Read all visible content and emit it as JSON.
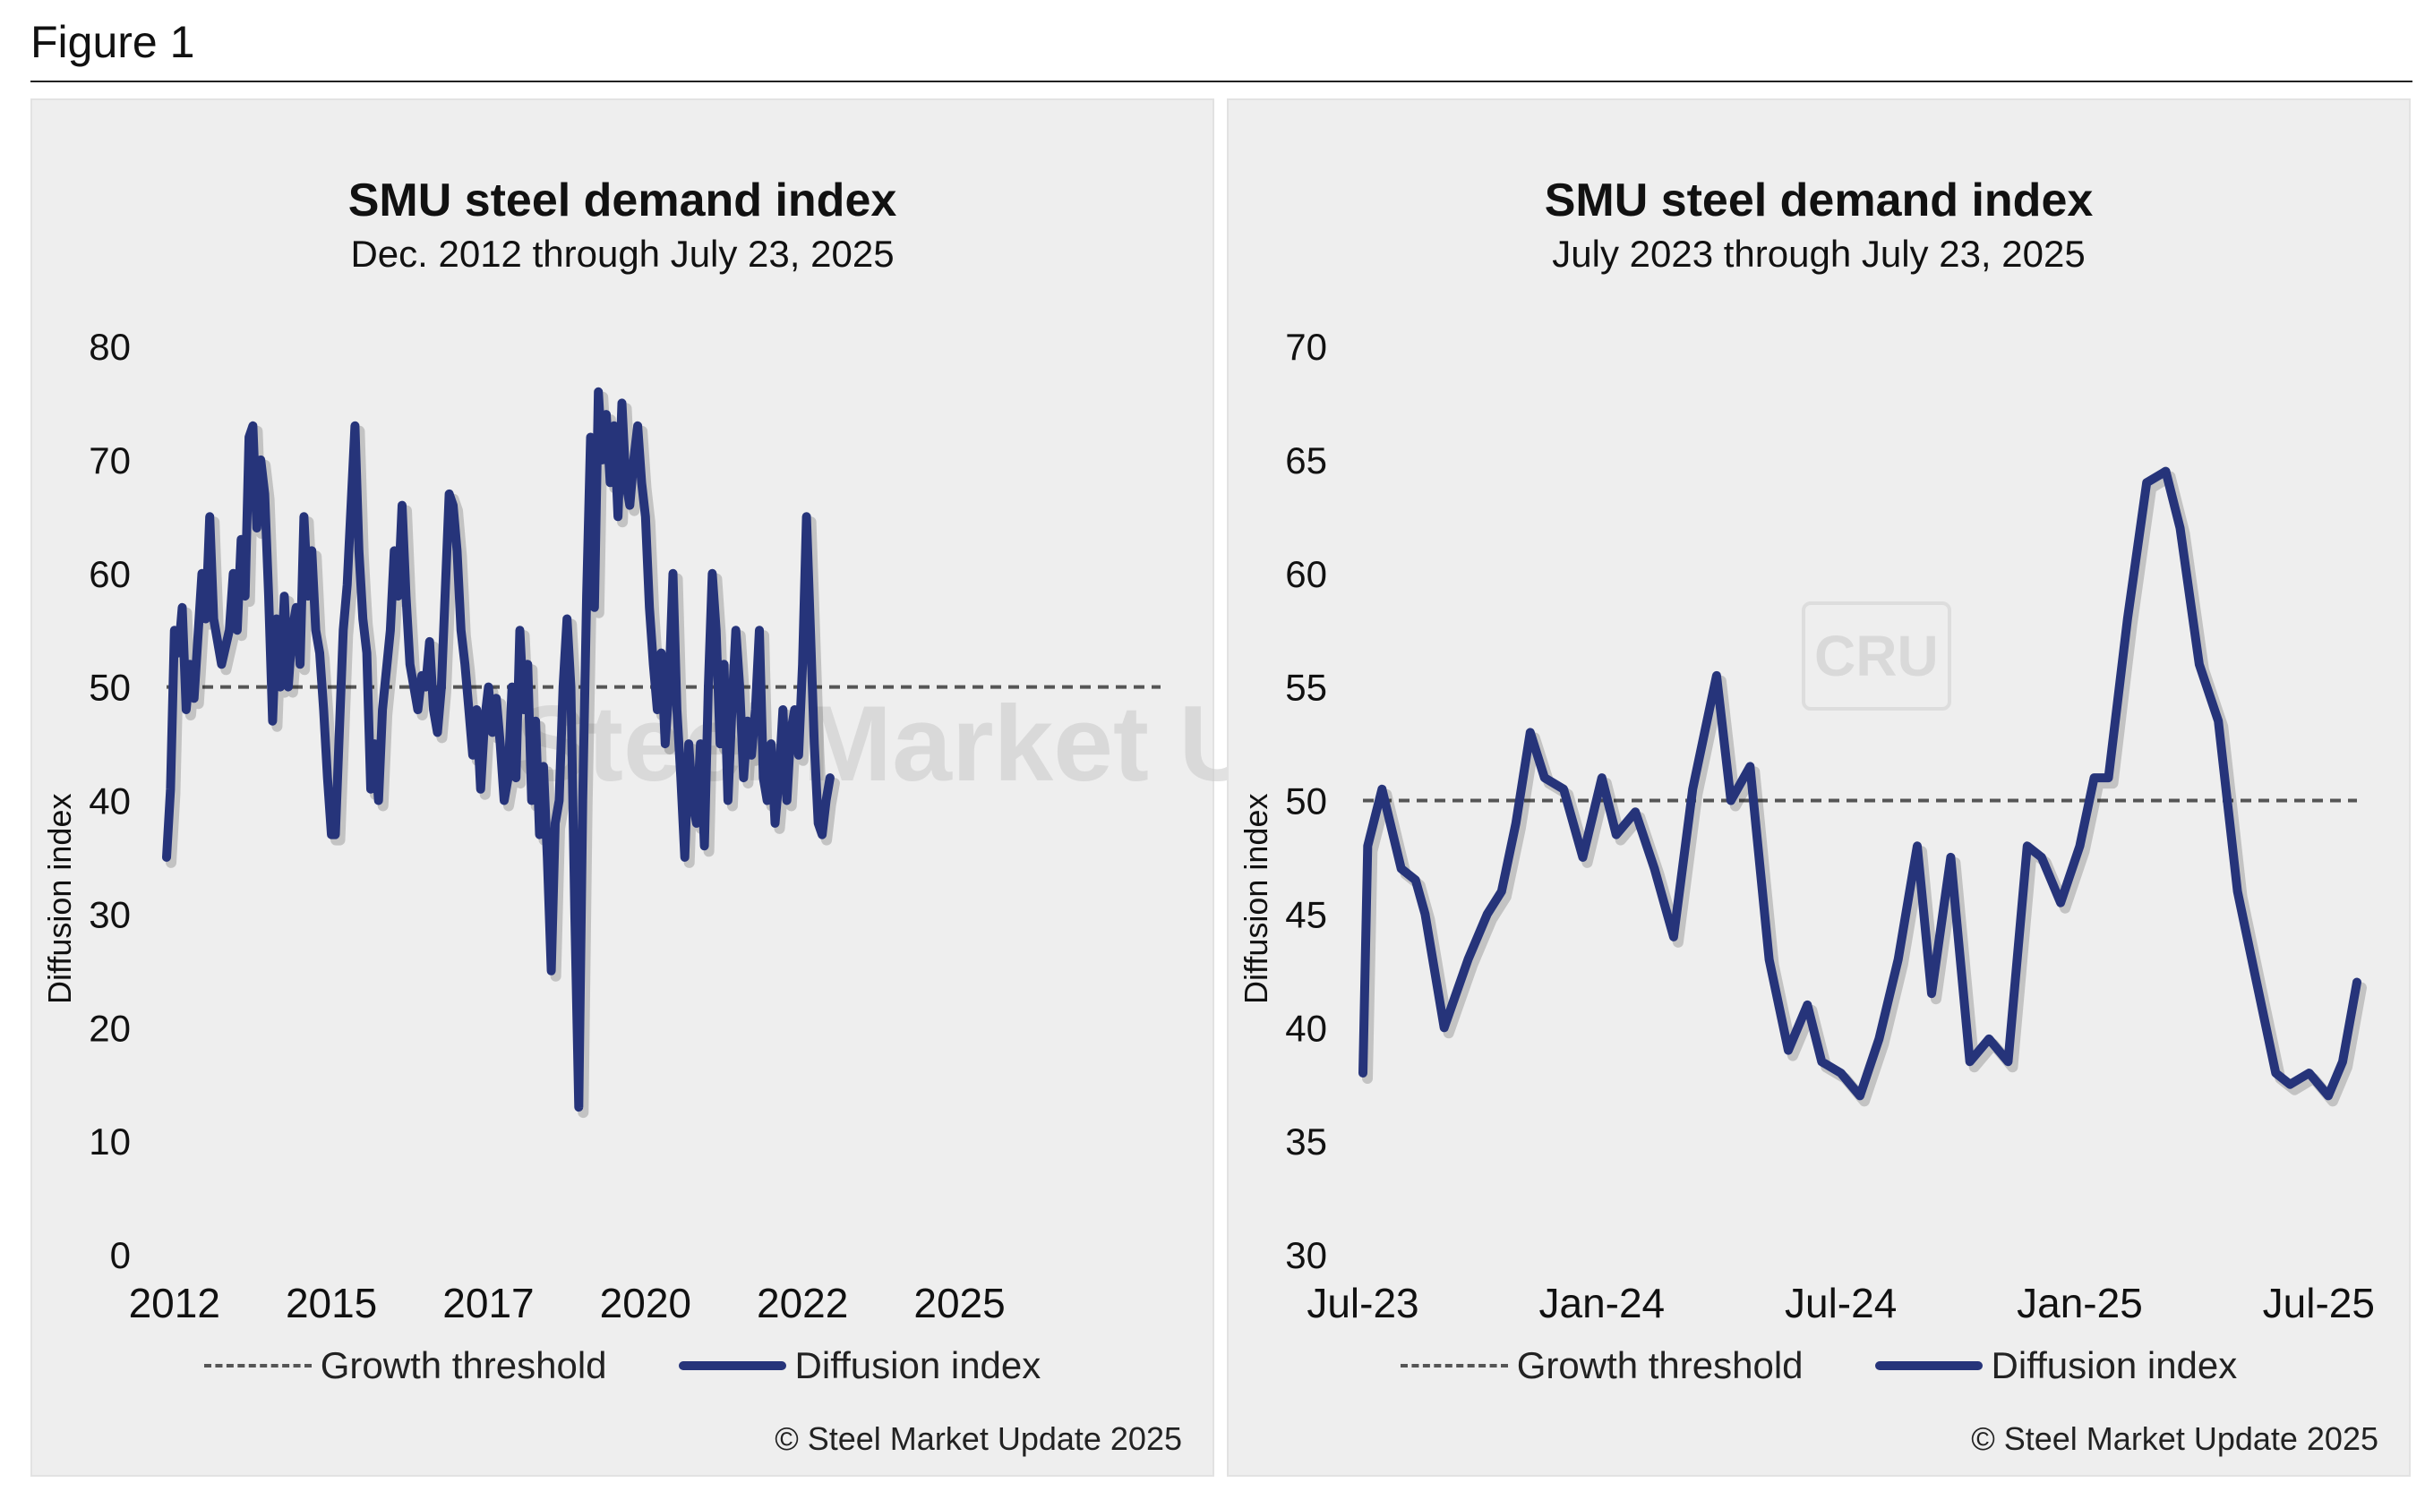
{
  "figure_label": "Figure 1",
  "watermark": {
    "brand": "Steel Market Update",
    "badge": "CRU"
  },
  "colors": {
    "series": "#26347a",
    "threshold": "#555555",
    "panel_bg": "#eeeeee"
  },
  "chart_data": [
    {
      "type": "line",
      "title": "SMU steel demand index",
      "subtitle": "Dec. 2012 through July 23, 2025",
      "ylabel": "Diffusion index",
      "xlabel": "",
      "ylim": [
        0,
        80
      ],
      "yticks": [
        "0",
        "10",
        "20",
        "30",
        "40",
        "50",
        "60",
        "70",
        "80"
      ],
      "xlim": [
        2012.9,
        2025.56
      ],
      "xticks": [
        {
          "label": "2012",
          "x": 2013.0
        },
        {
          "label": "2015",
          "x": 2015.0
        },
        {
          "label": "2017",
          "x": 2017.0
        },
        {
          "label": "2020",
          "x": 2019.0
        },
        {
          "label": "2022",
          "x": 2021.0
        },
        {
          "label": "2025",
          "x": 2023.0
        }
      ],
      "legend": [
        "Growth threshold",
        "Diffusion index"
      ],
      "legend_position": "bottom",
      "copyright": "© Steel Market Update 2025",
      "series": [
        {
          "name": "Growth threshold",
          "style": "dashed",
          "values": [
            [
              2012.9,
              50
            ],
            [
              2025.56,
              50
            ]
          ]
        },
        {
          "name": "Diffusion index",
          "style": "solid",
          "values": [
            [
              2012.9,
              35
            ],
            [
              2012.95,
              41
            ],
            [
              2013.0,
              55
            ],
            [
              2013.05,
              53
            ],
            [
              2013.1,
              57
            ],
            [
              2013.15,
              48
            ],
            [
              2013.2,
              52
            ],
            [
              2013.25,
              49
            ],
            [
              2013.35,
              60
            ],
            [
              2013.4,
              56
            ],
            [
              2013.45,
              65
            ],
            [
              2013.5,
              56
            ],
            [
              2013.55,
              54
            ],
            [
              2013.6,
              52
            ],
            [
              2013.7,
              55
            ],
            [
              2013.75,
              60
            ],
            [
              2013.8,
              55
            ],
            [
              2013.85,
              63
            ],
            [
              2013.9,
              58
            ],
            [
              2013.95,
              72
            ],
            [
              2014.0,
              73
            ],
            [
              2014.05,
              64
            ],
            [
              2014.1,
              70
            ],
            [
              2014.15,
              67
            ],
            [
              2014.2,
              58
            ],
            [
              2014.25,
              47
            ],
            [
              2014.3,
              56
            ],
            [
              2014.35,
              50
            ],
            [
              2014.4,
              58
            ],
            [
              2014.45,
              50
            ],
            [
              2014.5,
              55
            ],
            [
              2014.55,
              57
            ],
            [
              2014.6,
              52
            ],
            [
              2014.65,
              65
            ],
            [
              2014.7,
              58
            ],
            [
              2014.75,
              62
            ],
            [
              2014.8,
              55
            ],
            [
              2014.85,
              53
            ],
            [
              2014.9,
              48
            ],
            [
              2014.95,
              42
            ],
            [
              2015.0,
              37
            ],
            [
              2015.05,
              37
            ],
            [
              2015.15,
              55
            ],
            [
              2015.2,
              59
            ],
            [
              2015.3,
              73
            ],
            [
              2015.35,
              62
            ],
            [
              2015.4,
              56
            ],
            [
              2015.45,
              53
            ],
            [
              2015.5,
              41
            ],
            [
              2015.55,
              45
            ],
            [
              2015.6,
              40
            ],
            [
              2015.65,
              48
            ],
            [
              2015.75,
              55
            ],
            [
              2015.8,
              62
            ],
            [
              2015.85,
              58
            ],
            [
              2015.9,
              66
            ],
            [
              2015.95,
              58
            ],
            [
              2016.0,
              52
            ],
            [
              2016.05,
              50
            ],
            [
              2016.1,
              48
            ],
            [
              2016.15,
              51
            ],
            [
              2016.2,
              50
            ],
            [
              2016.25,
              54
            ],
            [
              2016.3,
              48
            ],
            [
              2016.35,
              46
            ],
            [
              2016.4,
              50
            ],
            [
              2016.5,
              67
            ],
            [
              2016.55,
              66
            ],
            [
              2016.6,
              62
            ],
            [
              2016.65,
              55
            ],
            [
              2016.7,
              52
            ],
            [
              2016.75,
              48
            ],
            [
              2016.8,
              44
            ],
            [
              2016.85,
              48
            ],
            [
              2016.9,
              41
            ],
            [
              2016.95,
              47
            ],
            [
              2017.0,
              50
            ],
            [
              2017.05,
              46
            ],
            [
              2017.1,
              49
            ],
            [
              2017.15,
              45
            ],
            [
              2017.2,
              40
            ],
            [
              2017.25,
              42
            ],
            [
              2017.3,
              50
            ],
            [
              2017.35,
              42
            ],
            [
              2017.4,
              55
            ],
            [
              2017.45,
              48
            ],
            [
              2017.5,
              52
            ],
            [
              2017.55,
              40
            ],
            [
              2017.6,
              47
            ],
            [
              2017.65,
              37
            ],
            [
              2017.7,
              43
            ],
            [
              2017.75,
              35
            ],
            [
              2017.8,
              25
            ],
            [
              2017.85,
              38
            ],
            [
              2017.9,
              40
            ],
            [
              2017.95,
              50
            ],
            [
              2018.0,
              56
            ],
            [
              2018.05,
              50
            ],
            [
              2018.1,
              30
            ],
            [
              2018.15,
              13
            ],
            [
              2018.2,
              40
            ],
            [
              2018.25,
              58
            ],
            [
              2018.3,
              72
            ],
            [
              2018.35,
              57
            ],
            [
              2018.4,
              76
            ],
            [
              2018.45,
              70
            ],
            [
              2018.5,
              74
            ],
            [
              2018.55,
              68
            ],
            [
              2018.6,
              73
            ],
            [
              2018.65,
              65
            ],
            [
              2018.7,
              75
            ],
            [
              2018.75,
              68
            ],
            [
              2018.8,
              66
            ],
            [
              2018.85,
              70
            ],
            [
              2018.9,
              73
            ],
            [
              2018.95,
              68
            ],
            [
              2019.0,
              65
            ],
            [
              2019.05,
              57
            ],
            [
              2019.1,
              52
            ],
            [
              2019.15,
              48
            ],
            [
              2019.2,
              53
            ],
            [
              2019.25,
              45
            ],
            [
              2019.3,
              50
            ],
            [
              2019.35,
              60
            ],
            [
              2019.4,
              48
            ],
            [
              2019.45,
              42
            ],
            [
              2019.5,
              35
            ],
            [
              2019.55,
              45
            ],
            [
              2019.6,
              40
            ],
            [
              2019.65,
              38
            ],
            [
              2019.7,
              45
            ],
            [
              2019.75,
              36
            ],
            [
              2019.8,
              50
            ],
            [
              2019.85,
              60
            ],
            [
              2019.9,
              55
            ],
            [
              2019.95,
              45
            ],
            [
              2020.0,
              52
            ],
            [
              2020.05,
              40
            ],
            [
              2020.1,
              48
            ],
            [
              2020.15,
              55
            ],
            [
              2020.2,
              50
            ],
            [
              2020.25,
              42
            ],
            [
              2020.3,
              47
            ],
            [
              2020.35,
              44
            ],
            [
              2020.4,
              48
            ],
            [
              2020.45,
              55
            ],
            [
              2020.5,
              42
            ],
            [
              2020.55,
              40
            ],
            [
              2020.6,
              45
            ],
            [
              2020.65,
              38
            ],
            [
              2020.7,
              42
            ],
            [
              2020.75,
              48
            ],
            [
              2020.8,
              40
            ],
            [
              2020.85,
              46
            ],
            [
              2020.9,
              48
            ],
            [
              2020.95,
              44
            ],
            [
              2021.0,
              52
            ],
            [
              2021.05,
              65
            ],
            [
              2021.1,
              55
            ],
            [
              2021.15,
              45
            ],
            [
              2021.2,
              38
            ],
            [
              2021.25,
              37
            ],
            [
              2021.3,
              40
            ],
            [
              2021.35,
              42
            ]
          ]
        }
      ]
    },
    {
      "type": "line",
      "title": "SMU steel demand index",
      "subtitle": "July 2023 through July 23, 2025",
      "ylabel": "Diffusion index",
      "xlabel": "",
      "ylim": [
        30,
        70
      ],
      "yticks": [
        "30",
        "35",
        "40",
        "45",
        "50",
        "55",
        "60",
        "65",
        "70"
      ],
      "xlim": [
        0,
        2.08
      ],
      "xticks": [
        {
          "label": "Jul-23",
          "x": 0.0
        },
        {
          "label": "Jan-24",
          "x": 0.5
        },
        {
          "label": "Jul-24",
          "x": 1.0
        },
        {
          "label": "Jan-25",
          "x": 1.5
        },
        {
          "label": "Jul-25",
          "x": 2.0
        }
      ],
      "legend": [
        "Growth threshold",
        "Diffusion index"
      ],
      "legend_position": "bottom",
      "copyright": "© Steel Market Update 2025",
      "series": [
        {
          "name": "Growth threshold",
          "style": "dashed",
          "values": [
            [
              0,
              50
            ],
            [
              2.08,
              50
            ]
          ]
        },
        {
          "name": "Diffusion index",
          "style": "solid",
          "values": [
            [
              0.0,
              38
            ],
            [
              0.01,
              48
            ],
            [
              0.04,
              50.5
            ],
            [
              0.08,
              47
            ],
            [
              0.11,
              46.5
            ],
            [
              0.13,
              45
            ],
            [
              0.17,
              40
            ],
            [
              0.22,
              43
            ],
            [
              0.26,
              45
            ],
            [
              0.29,
              46
            ],
            [
              0.32,
              49
            ],
            [
              0.35,
              53
            ],
            [
              0.38,
              51
            ],
            [
              0.42,
              50.5
            ],
            [
              0.46,
              47.5
            ],
            [
              0.5,
              51
            ],
            [
              0.53,
              48.5
            ],
            [
              0.57,
              49.5
            ],
            [
              0.61,
              47
            ],
            [
              0.65,
              44
            ],
            [
              0.69,
              50.5
            ],
            [
              0.74,
              55.5
            ],
            [
              0.77,
              50
            ],
            [
              0.81,
              51.5
            ],
            [
              0.85,
              43
            ],
            [
              0.89,
              39
            ],
            [
              0.93,
              41
            ],
            [
              0.96,
              38.5
            ],
            [
              1.0,
              38
            ],
            [
              1.04,
              37
            ],
            [
              1.08,
              39.5
            ],
            [
              1.12,
              43
            ],
            [
              1.16,
              48
            ],
            [
              1.19,
              41.5
            ],
            [
              1.23,
              47.5
            ],
            [
              1.27,
              38.5
            ],
            [
              1.31,
              39.5
            ],
            [
              1.35,
              38.5
            ],
            [
              1.39,
              48
            ],
            [
              1.42,
              47.5
            ],
            [
              1.46,
              45.5
            ],
            [
              1.5,
              48
            ],
            [
              1.53,
              51
            ],
            [
              1.56,
              51
            ],
            [
              1.6,
              58
            ],
            [
              1.64,
              64
            ],
            [
              1.68,
              64.5
            ],
            [
              1.71,
              62
            ],
            [
              1.75,
              56
            ],
            [
              1.79,
              53.5
            ],
            [
              1.83,
              46
            ],
            [
              1.87,
              42
            ],
            [
              1.91,
              38
            ],
            [
              1.94,
              37.5
            ],
            [
              1.98,
              38
            ],
            [
              2.02,
              37
            ],
            [
              2.05,
              38.5
            ],
            [
              2.08,
              42
            ]
          ]
        }
      ]
    }
  ]
}
